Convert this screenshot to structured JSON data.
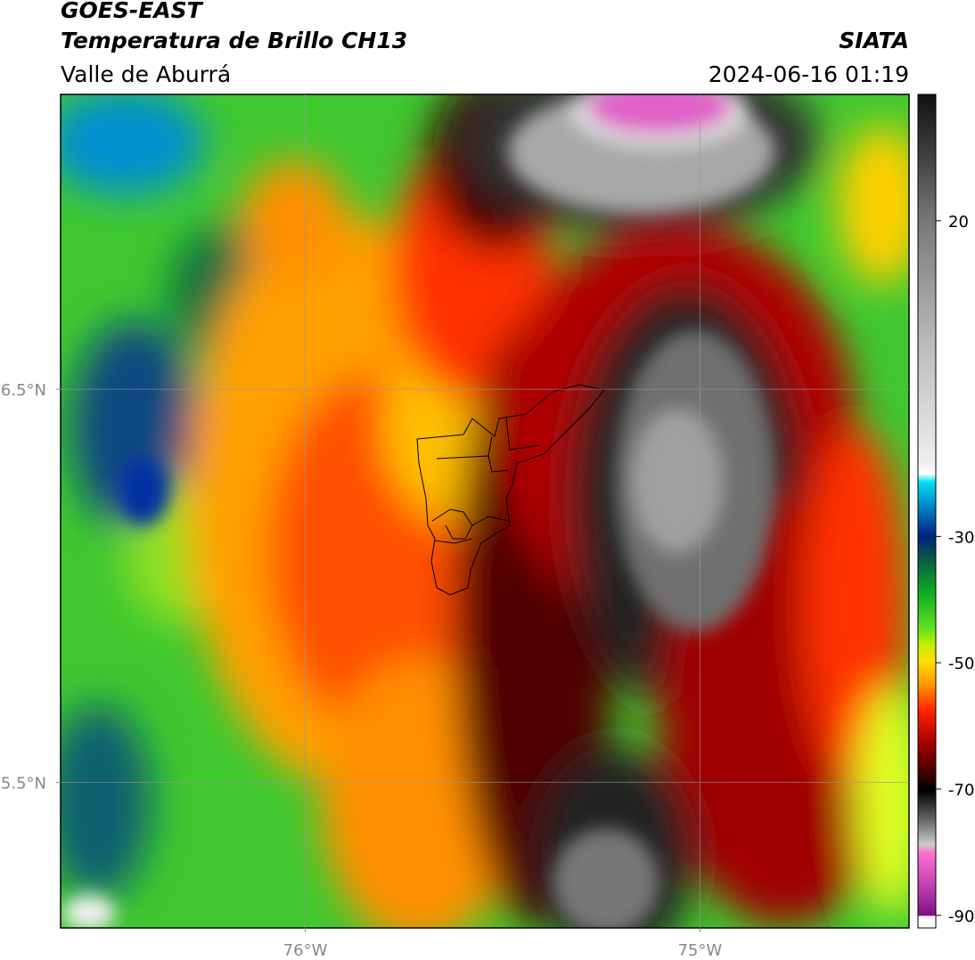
{
  "header": {
    "title": "GOES-EAST",
    "subtitle": "Temperatura de Brillo CH13",
    "region": "Valle de Aburrá",
    "agency": "SIATA",
    "timestamp": "2024-06-16 01:19"
  },
  "map": {
    "xlim": [
      -76.62,
      -74.47
    ],
    "ylim": [
      5.13,
      7.25
    ],
    "xticks": [
      {
        "value": -76,
        "label": "76°W"
      },
      {
        "value": -75,
        "label": "75°W"
      }
    ],
    "yticks": [
      {
        "value": 6.5,
        "label": "6.5°N"
      },
      {
        "value": 5.5,
        "label": "5.5°N"
      }
    ],
    "grid": true
  },
  "colorbar": {
    "lim": [
      -92,
      40
    ],
    "ticks": [
      20,
      -30,
      -50,
      -70,
      -90
    ]
  }
}
